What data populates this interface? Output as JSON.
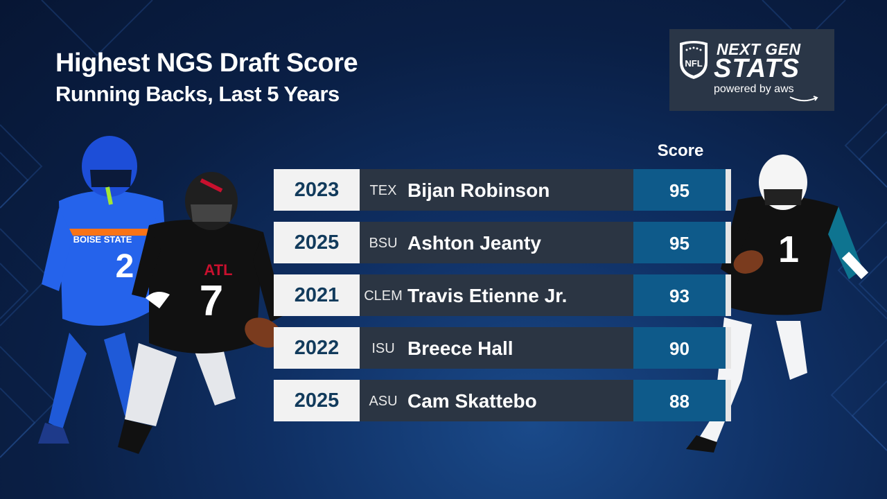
{
  "header": {
    "title": "Highest NGS Draft Score",
    "subtitle": "Running Backs, Last 5 Years"
  },
  "logo": {
    "shield_text": "NFL",
    "line1": "NEXT GEN",
    "line2": "STATS",
    "powered_by": "powered by aws"
  },
  "table": {
    "score_header": "Score",
    "rows": [
      {
        "year": "2023",
        "school": "TEX",
        "player": "Bijan Robinson",
        "score": "95"
      },
      {
        "year": "2025",
        "school": "BSU",
        "player": "Ashton Jeanty",
        "score": "95"
      },
      {
        "year": "2021",
        "school": "CLEM",
        "player": "Travis Etienne Jr.",
        "score": "93"
      },
      {
        "year": "2022",
        "school": "ISU",
        "player": "Breece Hall",
        "score": "90"
      },
      {
        "year": "2025",
        "school": "ASU",
        "player": "Cam Skattebo",
        "score": "88"
      }
    ]
  },
  "players": {
    "left_back_jersey": "2",
    "left_back_team": "BOISE STATE",
    "left_front_jersey": "7",
    "left_front_team": "ATL",
    "right_jersey": "1"
  },
  "colors": {
    "background": "#0a1f45",
    "row_bg": "#2b3543",
    "score_bg": "#0e5a8a",
    "year_text": "#123b5c"
  }
}
